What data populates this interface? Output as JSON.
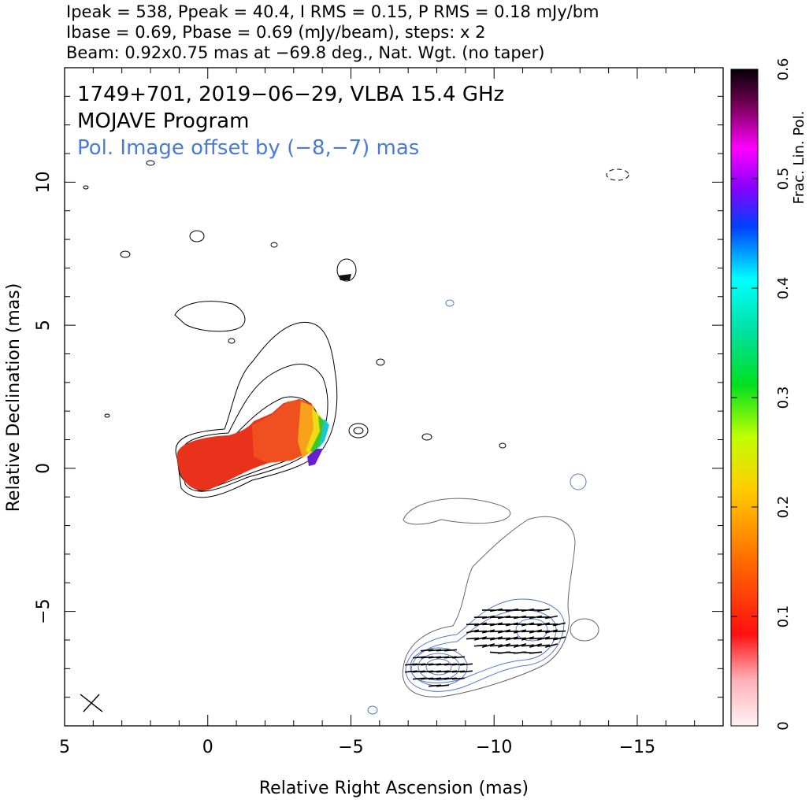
{
  "header": {
    "line1": "Ipeak = 538, Ppeak = 40.4, I RMS = 0.15, P RMS = 0.18 mJy/bm",
    "line2": "Ibase = 0.69, Pbase = 0.69 (mJy/beam), steps: x 2",
    "line3": "Beam: 0.92x0.75 mas at −69.8 deg., Nat. Wgt. (no taper)"
  },
  "annotations": {
    "source": "1749+701, 2019−06−29, VLBA 15.4 GHz",
    "program": "MOJAVE Program",
    "offset": "Pol. Image offset by (−8,−7) mas"
  },
  "colors": {
    "offset_text": "#4a7bd4",
    "pol_contour": "#5577cc",
    "total_contour": "#000000",
    "gray_contour": "#666666",
    "evpa": "#000000"
  },
  "chart_data": {
    "type": "heatmap",
    "xlabel": "Relative Right Ascension (mas)",
    "ylabel": "Relative Declination (mas)",
    "xlim": [
      5,
      -18
    ],
    "ylim": [
      -9,
      14
    ],
    "x_ticks": [
      5,
      0,
      -5,
      -10,
      -15
    ],
    "y_ticks": [
      10,
      5,
      0,
      -5
    ],
    "x_tick_labels": [
      "5",
      "0",
      "−5",
      "−10",
      "−15"
    ],
    "y_tick_labels": [
      "10",
      "5",
      "0",
      "−5"
    ],
    "colorbar": {
      "label": "Frac. Lin. Pol.",
      "range": [
        0,
        0.6
      ],
      "ticks": [
        0,
        0.1,
        0.2,
        0.3,
        0.4,
        0.5,
        0.6
      ],
      "tick_labels": [
        "0",
        "0.1",
        "0.2",
        "0.3",
        "0.4",
        "0.5",
        "0.6"
      ]
    },
    "core": {
      "x": 0.0,
      "y": 0.0
    },
    "components": [
      {
        "x": 0.0,
        "y": 0.0
      },
      {
        "x": -2.5,
        "y": 1.1
      },
      {
        "x": -4.0,
        "y": 1.5
      }
    ],
    "pol_image_offset": [
      -8,
      -7
    ]
  }
}
